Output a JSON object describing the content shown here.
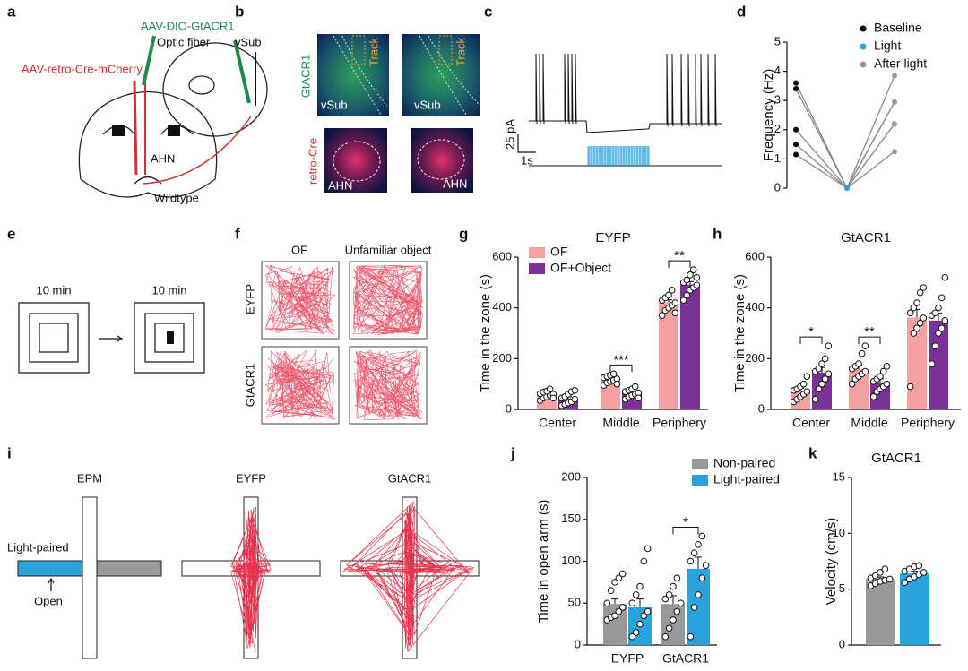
{
  "panels": {
    "a": {
      "letter": "a",
      "virus1": "AAV-DIO-GtACR1",
      "fiber": "Optic fiber",
      "vsub": "vSub",
      "virus2": "AAV-retro-Cre-mCherry",
      "ahn": "AHN",
      "mouse": "Wildtype"
    },
    "b": {
      "letter": "b",
      "gt": "GtACR1",
      "cre": "retro-Cre",
      "track": "Track",
      "vsub": "vSub",
      "ahn": "AHN"
    },
    "c": {
      "letter": "c",
      "pa": "25 pA",
      "s": "1s"
    },
    "e": {
      "letter": "e",
      "t": "10 min"
    },
    "f": {
      "letter": "f",
      "cols": [
        "OF",
        "Unfamiliar object"
      ],
      "rows": [
        "EYFP",
        "GtACR1"
      ]
    },
    "i": {
      "letter": "i",
      "titles": [
        "EPM",
        "EYFP",
        "GtACR1"
      ],
      "lp": "Light-paired",
      "open": "Open"
    }
  },
  "chart_data": [
    {
      "type": "line",
      "panel": "d",
      "ylabel": "Frequency (Hz)",
      "categories": [
        null,
        null,
        null
      ],
      "legend": [
        {
          "name": "Baseline",
          "color": "#000000"
        },
        {
          "name": "Light",
          "color": "#29a3dc"
        },
        {
          "name": "After light",
          "color": "#999999"
        }
      ],
      "series": [
        {
          "values": [
            3.6,
            0,
            3.85
          ]
        },
        {
          "values": [
            3.4,
            0,
            2.95
          ]
        },
        {
          "values": [
            2.0,
            0,
            2.95
          ]
        },
        {
          "values": [
            1.5,
            0,
            2.2
          ]
        },
        {
          "values": [
            1.15,
            0,
            1.25
          ]
        }
      ],
      "ylim": [
        0,
        5
      ],
      "yticks": [
        0,
        1,
        2,
        3,
        4,
        5
      ]
    },
    {
      "type": "bar",
      "panel": "g",
      "title": "EYFP",
      "ylabel": "Time in the zone (s)",
      "categories": [
        "Center",
        "Middle",
        "Periphery"
      ],
      "series": [
        {
          "name": "OF",
          "color": "#f4a0a0",
          "values": [
            57,
            120,
            422
          ],
          "errors": [
            6,
            6,
            10
          ],
          "points": [
            [
              35,
              45,
              50,
              55,
              60,
              62,
              68,
              72,
              80,
              45
            ],
            [
              95,
              105,
              110,
              115,
              120,
              125,
              130,
              135,
              140,
              100
            ],
            [
              370,
              390,
              400,
              410,
              420,
              430,
              440,
              450,
              470,
              380
            ]
          ]
        },
        {
          "name": "OF+Object",
          "color": "#7b3294",
          "values": [
            43,
            65,
            492
          ],
          "errors": [
            7,
            6,
            12
          ],
          "points": [
            [
              15,
              20,
              25,
              30,
              40,
              45,
              50,
              60,
              70,
              75
            ],
            [
              40,
              50,
              55,
              60,
              65,
              70,
              75,
              80,
              90,
              45
            ],
            [
              430,
              450,
              470,
              480,
              490,
              500,
              510,
              530,
              550,
              520
            ]
          ]
        }
      ],
      "significance": [
        null,
        "***",
        "**"
      ],
      "ylim": [
        0,
        600
      ],
      "yticks": [
        0,
        200,
        400,
        600
      ]
    },
    {
      "type": "bar",
      "panel": "h",
      "title": "GtACR1",
      "ylabel": "Time in the zone (s)",
      "categories": [
        "Center",
        "Middle",
        "Periphery"
      ],
      "series": [
        {
          "name": "OF",
          "color": "#f4a0a0",
          "values": [
            72,
            158,
            362
          ],
          "errors": [
            12,
            18,
            32
          ],
          "points": [
            [
              30,
              40,
              50,
              60,
              70,
              75,
              80,
              90,
              100,
              130
            ],
            [
              100,
              120,
              130,
              140,
              150,
              160,
              170,
              180,
              220,
              250
            ],
            [
              90,
              300,
              320,
              340,
              360,
              380,
              400,
              420,
              460,
              480
            ]
          ]
        },
        {
          "name": "OF+Object",
          "color": "#7b3294",
          "values": [
            145,
            107,
            350
          ],
          "errors": [
            20,
            14,
            30
          ],
          "points": [
            [
              40,
              80,
              100,
              120,
              140,
              150,
              160,
              180,
              200,
              250
            ],
            [
              50,
              70,
              80,
              90,
              100,
              110,
              120,
              130,
              150,
              170
            ],
            [
              180,
              250,
              300,
              320,
              350,
              370,
              380,
              400,
              440,
              520
            ]
          ]
        }
      ],
      "significance": [
        "*",
        "**",
        null
      ],
      "ylim": [
        0,
        600
      ],
      "yticks": [
        0,
        200,
        400,
        600
      ]
    },
    {
      "type": "bar",
      "panel": "j",
      "ylabel": "Time in open arm (s)",
      "categories": [
        "EYFP",
        "GtACR1"
      ],
      "series": [
        {
          "name": "Non-paired",
          "color": "#999999",
          "values": [
            49,
            49
          ],
          "errors": [
            6,
            10
          ],
          "points": [
            [
              30,
              33,
              35,
              40,
              45,
              50,
              65,
              75,
              80,
              85
            ],
            [
              10,
              20,
              30,
              40,
              50,
              55,
              60,
              70,
              80
            ]
          ]
        },
        {
          "name": "Light-paired",
          "color": "#29a3dc",
          "values": [
            45,
            91
          ],
          "errors": [
            10,
            14
          ],
          "points": [
            [
              10,
              15,
              25,
              35,
              40,
              50,
              60,
              70,
              100,
              115
            ],
            [
              10,
              45,
              60,
              80,
              95,
              100,
              110,
              120,
              130
            ]
          ]
        }
      ],
      "significance": [
        null,
        "*"
      ],
      "ylim": [
        0,
        200
      ],
      "yticks": [
        0,
        50,
        100,
        150,
        200
      ]
    },
    {
      "type": "bar",
      "panel": "k",
      "title": "GtACR1",
      "ylabel": "Velocity (cm/s)",
      "categories": [
        null,
        null
      ],
      "values": [
        5.9,
        6.4
      ],
      "errors": [
        0.2,
        0.2
      ],
      "colors": [
        "#999999",
        "#29a3dc"
      ],
      "points": [
        [
          5.3,
          5.5,
          5.7,
          5.8,
          5.9,
          6.0,
          6.2,
          6.5,
          6.8
        ],
        [
          5.6,
          5.9,
          6.1,
          6.3,
          6.5,
          6.6,
          6.8,
          7.0,
          7.1
        ]
      ],
      "ylim": [
        0,
        15
      ],
      "yticks": [
        0,
        5,
        10,
        15
      ]
    }
  ]
}
